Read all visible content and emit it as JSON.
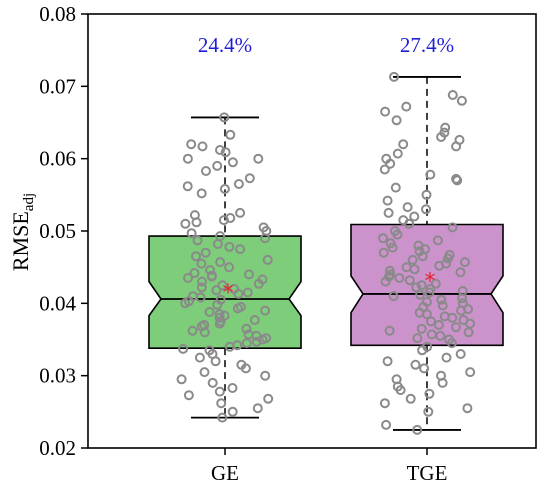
{
  "chart_data": {
    "type": "box",
    "ylabel": {
      "main": "RMSE",
      "sub": "adj"
    },
    "ylim": [
      0.02,
      0.08
    ],
    "yticks": [
      "0.02",
      "0.03",
      "0.04",
      "0.05",
      "0.06",
      "0.07",
      "0.08"
    ],
    "categories": [
      "GE",
      "TGE"
    ],
    "colors": {
      "percent_text": "#1f1fd6",
      "mean_marker": "#e8202a",
      "points": "#8a8a8a",
      "box_outline": "#000000"
    },
    "boxes": [
      {
        "name": "GE",
        "fill": "#7dcd7a",
        "percent_label": "24.4%",
        "whisker_low": 0.0242,
        "q1": 0.0338,
        "median": 0.0406,
        "q3": 0.0493,
        "whisker_high": 0.0657,
        "notch_low": 0.0383,
        "notch_high": 0.043,
        "mean": 0.042,
        "points": [
          0.0657,
          0.0633,
          0.062,
          0.0617,
          0.0612,
          0.0609,
          0.06,
          0.06,
          0.0595,
          0.059,
          0.0583,
          0.0573,
          0.0565,
          0.0562,
          0.0558,
          0.0552,
          0.0525,
          0.0522,
          0.0518,
          0.0515,
          0.0512,
          0.051,
          0.0505,
          0.05,
          0.0497,
          0.0493,
          0.049,
          0.0487,
          0.0482,
          0.0478,
          0.0475,
          0.047,
          0.0465,
          0.046,
          0.0457,
          0.0455,
          0.045,
          0.0446,
          0.0442,
          0.044,
          0.0438,
          0.0437,
          0.0435,
          0.0433,
          0.043,
          0.0427,
          0.0425,
          0.0422,
          0.042,
          0.0418,
          0.0415,
          0.0413,
          0.041,
          0.0408,
          0.0405,
          0.0403,
          0.04,
          0.0398,
          0.0395,
          0.0393,
          0.039,
          0.0388,
          0.0385,
          0.0383,
          0.038,
          0.0377,
          0.0375,
          0.0372,
          0.037,
          0.0368,
          0.0365,
          0.0362,
          0.036,
          0.0357,
          0.0355,
          0.0352,
          0.035,
          0.0347,
          0.0345,
          0.0342,
          0.034,
          0.0337,
          0.0335,
          0.033,
          0.0325,
          0.032,
          0.0315,
          0.031,
          0.0305,
          0.03,
          0.0295,
          0.029,
          0.0283,
          0.0278,
          0.0273,
          0.0268,
          0.0262,
          0.0255,
          0.025,
          0.0242
        ]
      },
      {
        "name": "TGE",
        "fill": "#cc92cc",
        "percent_label": "27.4%",
        "whisker_low": 0.0225,
        "q1": 0.0342,
        "median": 0.0413,
        "q3": 0.0509,
        "whisker_high": 0.0713,
        "notch_low": 0.0387,
        "notch_high": 0.0438,
        "mean": 0.0436,
        "points": [
          0.0713,
          0.0688,
          0.068,
          0.0672,
          0.0665,
          0.0653,
          0.0643,
          0.0636,
          0.063,
          0.0626,
          0.062,
          0.0617,
          0.0607,
          0.06,
          0.0593,
          0.0585,
          0.0578,
          0.0572,
          0.057,
          0.056,
          0.055,
          0.0542,
          0.0533,
          0.053,
          0.0525,
          0.052,
          0.0515,
          0.051,
          0.0505,
          0.05,
          0.0495,
          0.049,
          0.0487,
          0.0483,
          0.048,
          0.0477,
          0.0475,
          0.0472,
          0.047,
          0.0467,
          0.0465,
          0.0462,
          0.046,
          0.0457,
          0.0455,
          0.0452,
          0.045,
          0.0447,
          0.0445,
          0.0443,
          0.044,
          0.0437,
          0.0435,
          0.0432,
          0.043,
          0.0427,
          0.0425,
          0.0422,
          0.042,
          0.0417,
          0.0415,
          0.0412,
          0.041,
          0.0407,
          0.0405,
          0.0402,
          0.04,
          0.0397,
          0.0395,
          0.0392,
          0.039,
          0.0387,
          0.0385,
          0.0382,
          0.038,
          0.0377,
          0.0375,
          0.0372,
          0.037,
          0.0367,
          0.0365,
          0.0362,
          0.036,
          0.0357,
          0.0355,
          0.0352,
          0.035,
          0.0345,
          0.034,
          0.0335,
          0.033,
          0.0325,
          0.032,
          0.0315,
          0.031,
          0.0305,
          0.03,
          0.0295,
          0.029,
          0.0285,
          0.028,
          0.0275,
          0.0268,
          0.0262,
          0.0255,
          0.025,
          0.0232,
          0.0225
        ]
      }
    ]
  }
}
